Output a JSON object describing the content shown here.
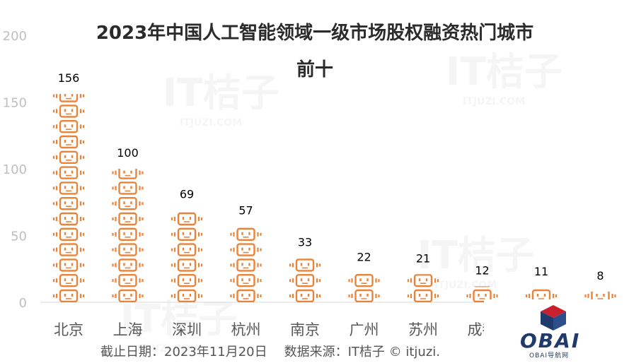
{
  "chart_data": {
    "type": "bar",
    "title": "2023年中国人工智能领域一级市场股权融资热门城市前十",
    "title_line1": "2023年中国人工智能领域一级市场股权融资热门城市",
    "title_line2": "前十",
    "categories": [
      "北京",
      "上海",
      "深圳",
      "杭州",
      "南京",
      "广州",
      "苏州",
      "成都",
      "",
      ""
    ],
    "values": [
      156,
      100,
      69,
      57,
      33,
      22,
      21,
      12,
      11,
      8
    ],
    "data_labels": [
      "156",
      "100",
      "69",
      "57",
      "33",
      "22",
      "21",
      "12",
      "11",
      "8"
    ],
    "yticks": [
      "0",
      "50",
      "100",
      "150",
      "200"
    ],
    "ylim": [
      0,
      200
    ],
    "grid": false,
    "bar_style": "stacked robot-head pictograms",
    "bar_color": "#e8833a"
  },
  "footnote": {
    "date": "截止日期：2023年11月20日",
    "source": "数据来源：IT桔子 © itjuzi."
  },
  "watermark": {
    "text": "IT桔子",
    "url": "ITJUZI.COM"
  },
  "logo": {
    "text": "OBAI",
    "subtitle": "OBAI导航网"
  }
}
